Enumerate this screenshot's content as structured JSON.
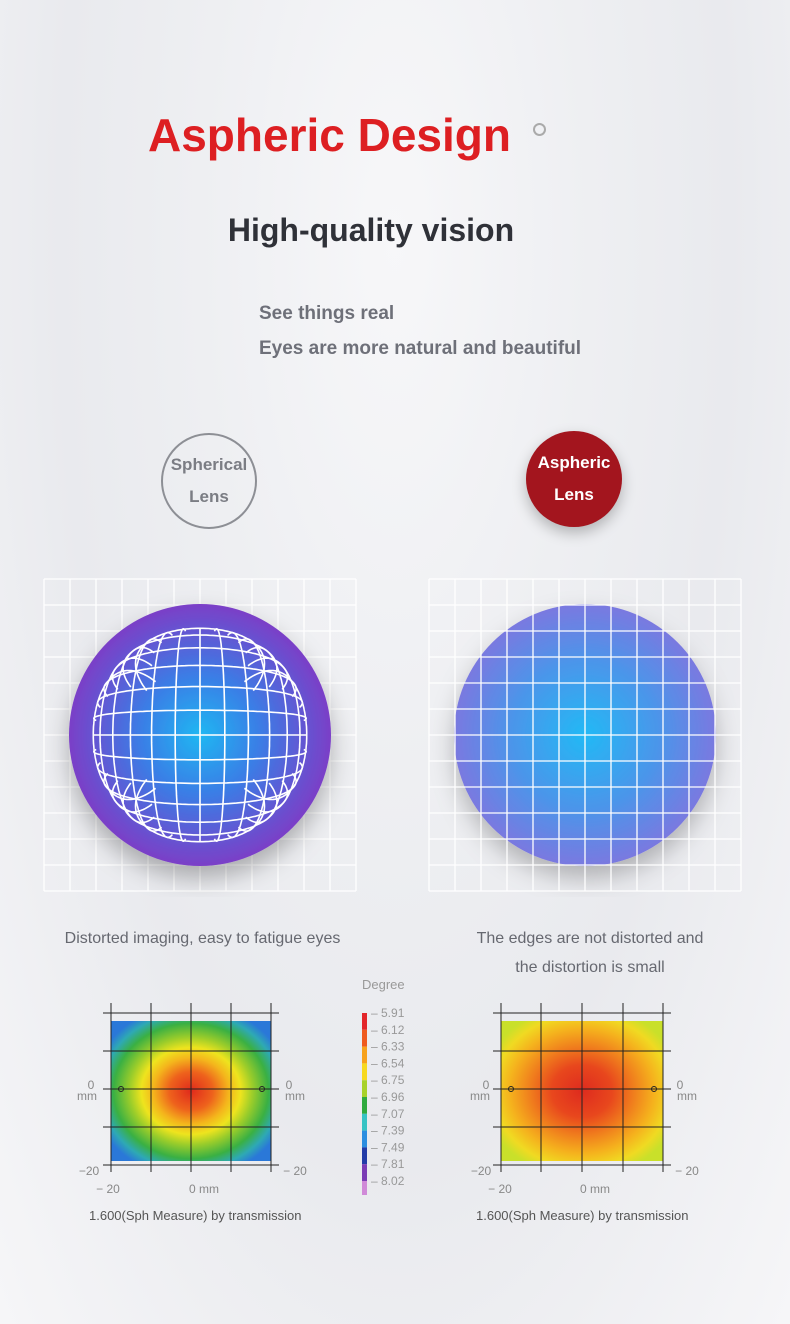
{
  "header": {
    "title": "Aspheric Design",
    "subtitle": "High-quality vision",
    "taglines": [
      "See things real",
      "Eyes are more natural and beautiful"
    ]
  },
  "badges": {
    "spherical": {
      "line1": "Spherical",
      "line2": "Lens"
    },
    "aspheric": {
      "line1": "Aspheric",
      "line2": "Lens"
    }
  },
  "captions": {
    "spherical": "Distorted imaging, easy to fatigue eyes",
    "aspheric_line1": "The edges are not distorted and",
    "aspheric_line2": "the distortion is small"
  },
  "legend": {
    "title": "Degree",
    "values": [
      "5.91",
      "6.12",
      "6.33",
      "6.54",
      "6.75",
      "6.96",
      "7.07",
      "7.39",
      "7.49",
      "7.81",
      "8.02"
    ],
    "colors": [
      "#e3262a",
      "#ef5a1e",
      "#f7a21c",
      "#f7d91f",
      "#a8d22a",
      "#2faa3e",
      "#36c3c4",
      "#2b8ee0",
      "#233ca8",
      "#7b3cb5",
      "#d08ad8"
    ]
  },
  "maps": {
    "axis_labels": {
      "left_zero": "0",
      "left_unit": "mm",
      "right_zero": "0",
      "right_unit": "mm",
      "bottom_left": "− 20",
      "right_bottom": "− 20",
      "bottom_center": "0 mm",
      "left_bottom": "−20"
    },
    "spherical_caption": "1.600(Sph Measure) by transmission",
    "aspheric_caption": "1.600(Sph Measure) by transmission"
  },
  "colors": {
    "title": "#dd1f22",
    "badge_aspheric": "#a3151e"
  }
}
